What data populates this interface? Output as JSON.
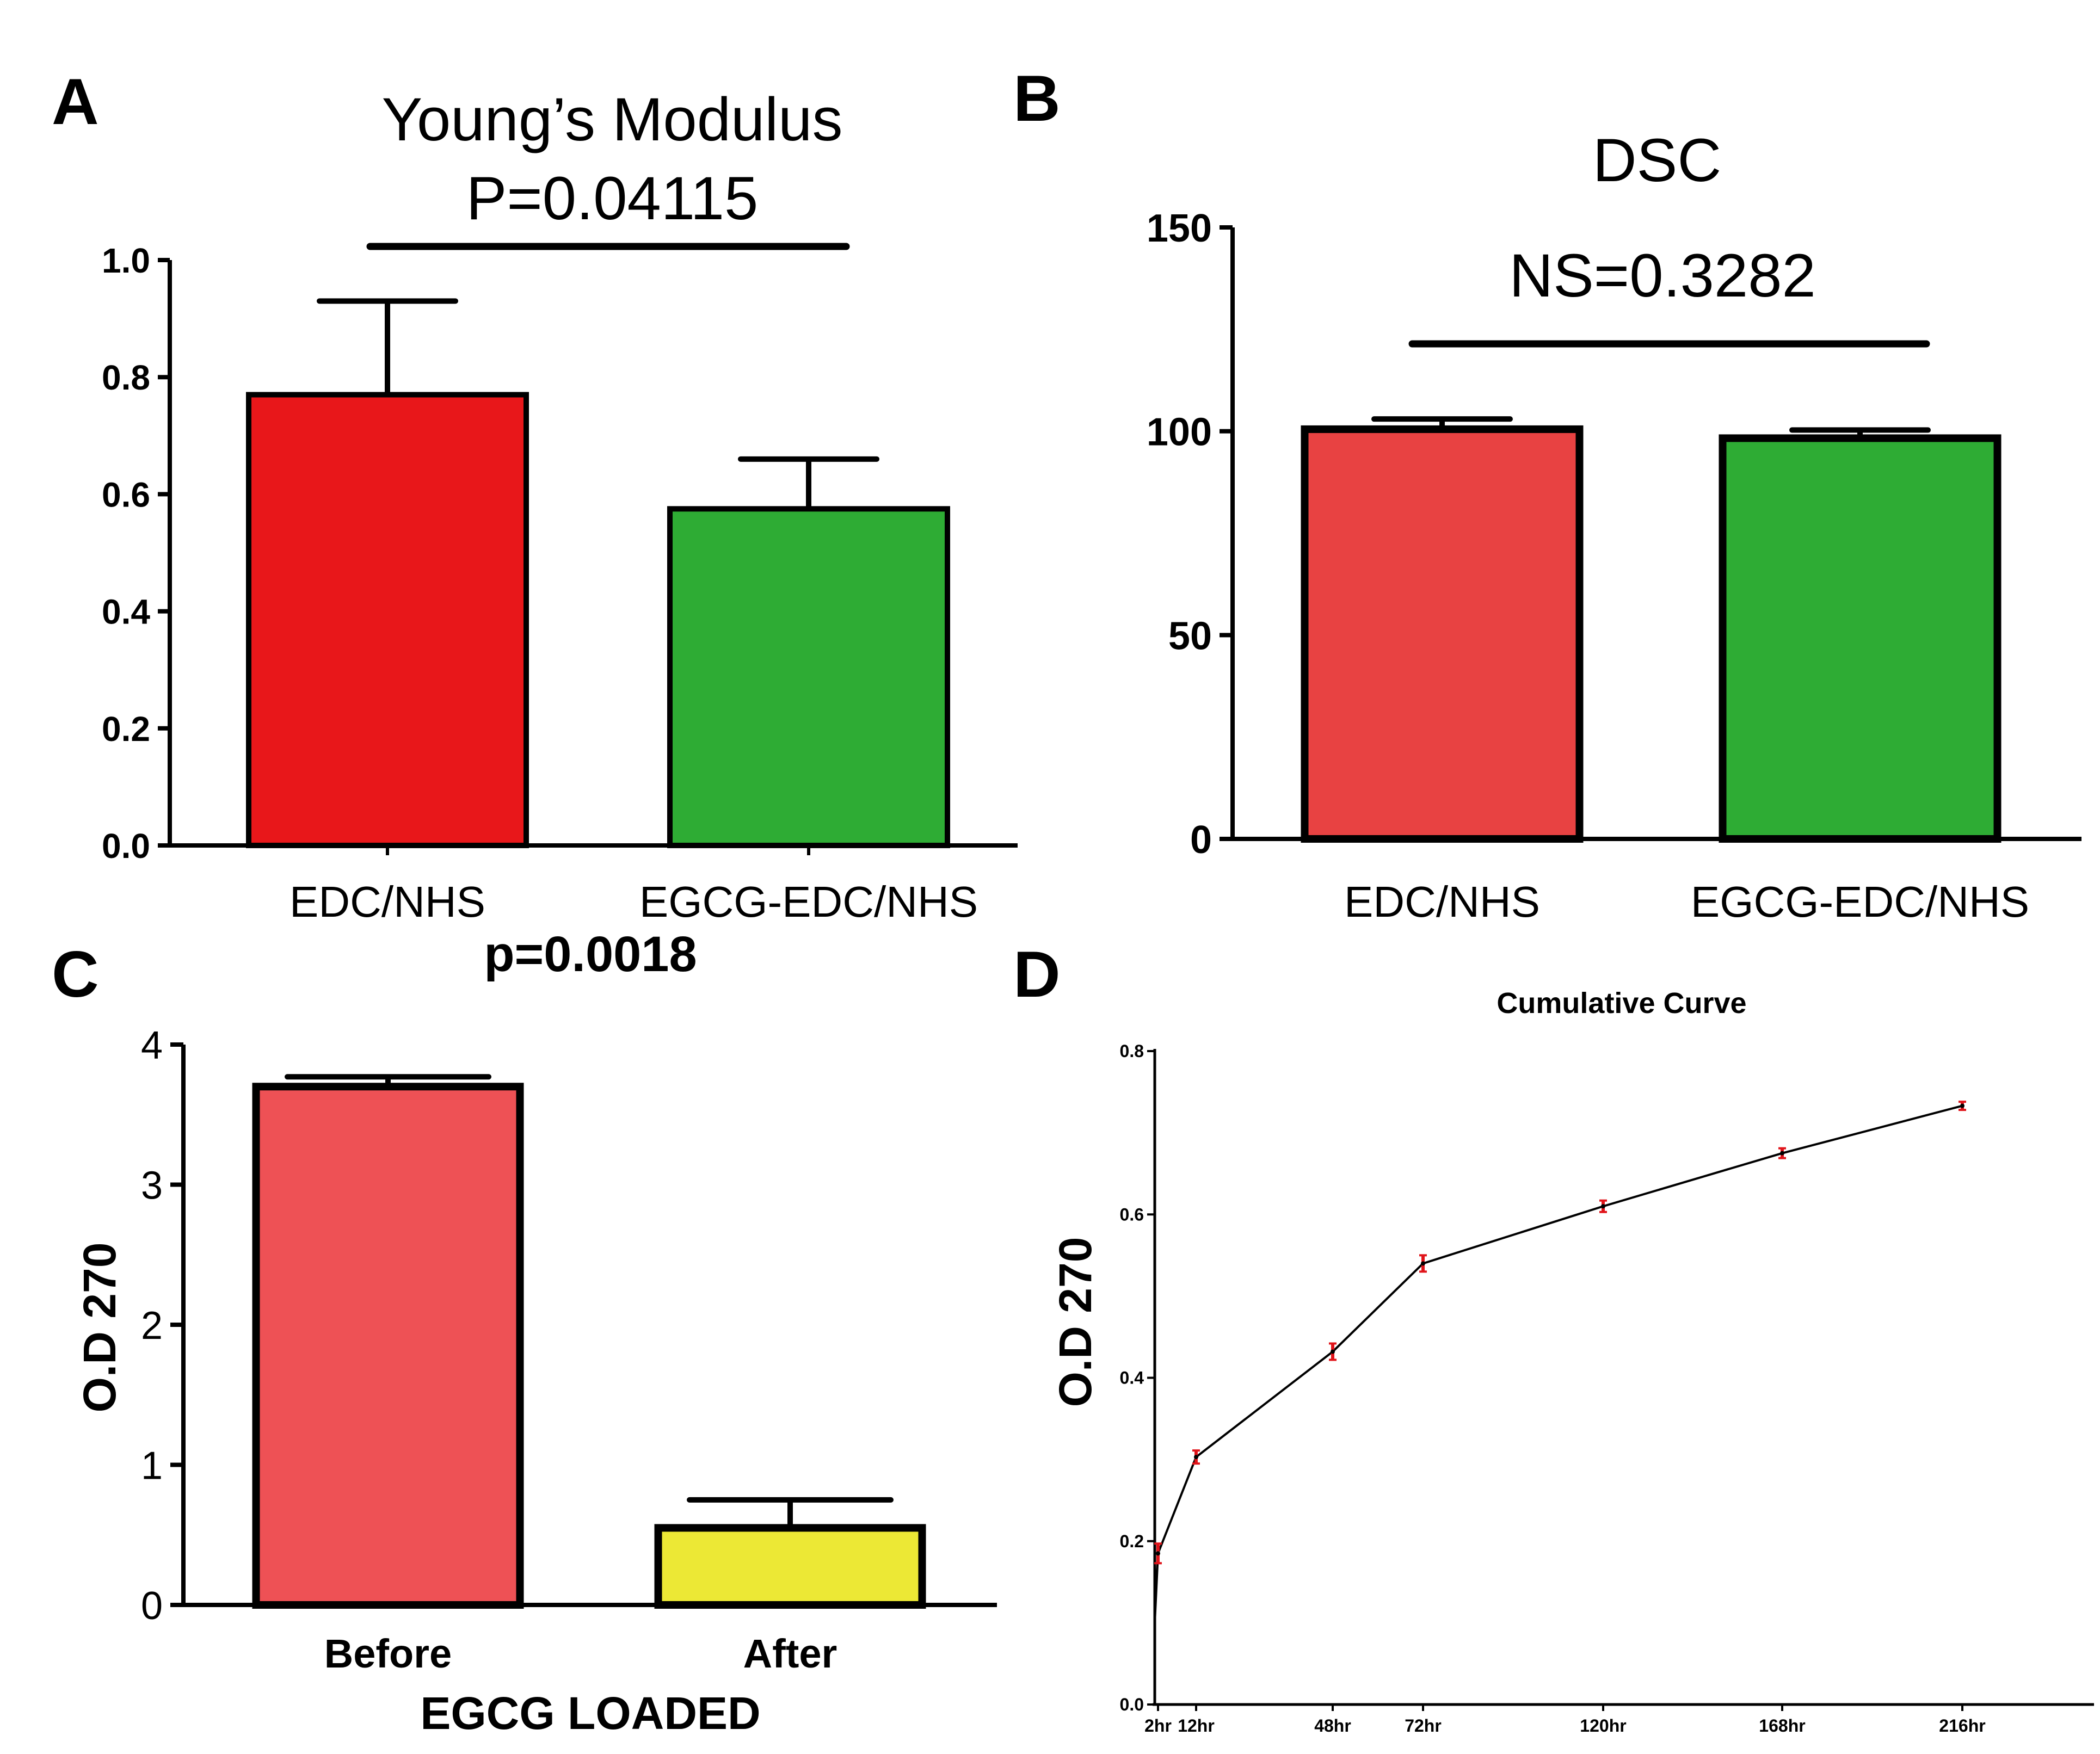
{
  "chart_data": [
    {
      "panel": "A",
      "type": "bar",
      "title": "Young’s Modulus",
      "annotation": "P=0.04115",
      "categories": [
        "EDC/NHS",
        "EGCG-EDC/NHS"
      ],
      "values": [
        0.77,
        0.575
      ],
      "error": [
        0.16,
        0.085
      ],
      "ylim": [
        0,
        1.0
      ],
      "yticks": [
        "0.0",
        "0.2",
        "0.4",
        "0.6",
        "0.8",
        "1.0"
      ],
      "colors": [
        "#e8171a",
        "#2eac34"
      ]
    },
    {
      "panel": "B",
      "type": "bar",
      "title": "DSC",
      "annotation": "NS=0.3282",
      "categories": [
        "EDC/NHS",
        "EGCG-EDC/NHS"
      ],
      "values": [
        100.5,
        98.3
      ],
      "error": [
        2.5,
        2.0
      ],
      "ylim": [
        0,
        150
      ],
      "yticks": [
        "0",
        "50",
        "100",
        "150"
      ],
      "colors": [
        "#e84242",
        "#2eac34"
      ]
    },
    {
      "panel": "C",
      "type": "bar",
      "title": "",
      "annotation": "p=0.0018",
      "categories": [
        "Before",
        "After"
      ],
      "values": [
        3.7,
        0.55
      ],
      "error": [
        0.07,
        0.2
      ],
      "ylim": [
        0,
        4
      ],
      "yticks": [
        "0",
        "1",
        "2",
        "3",
        "4"
      ],
      "ylabel": "O.D 270",
      "xlabel": "EGCG LOADED",
      "colors": [
        "#ee5155",
        "#ece835"
      ]
    },
    {
      "panel": "D",
      "type": "line",
      "title": "Cumulative Curve",
      "ylabel": "O.D 270",
      "xlabel": "",
      "x": [
        2,
        12,
        48,
        72,
        120,
        168,
        216
      ],
      "x_tick_labels": [
        "2hr",
        "12hr",
        "48hr",
        "72hr",
        "120hr",
        "168hr",
        "216hr"
      ],
      "values": [
        0.185,
        0.303,
        0.432,
        0.54,
        0.61,
        0.675,
        0.733
      ],
      "error": [
        0.012,
        0.008,
        0.01,
        0.01,
        0.007,
        0.006,
        0.005
      ],
      "line_starts_at": {
        "x": 0,
        "y": 0.1
      },
      "ylim": [
        0,
        0.8
      ],
      "yticks": [
        "0.0",
        "0.2",
        "0.4",
        "0.6",
        "0.8"
      ],
      "colors": [
        "#000000",
        "#e0141a"
      ]
    }
  ]
}
